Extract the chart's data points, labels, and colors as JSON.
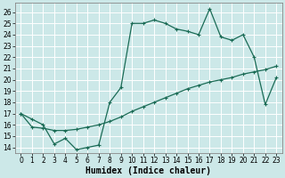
{
  "xlabel": "Humidex (Indice chaleur)",
  "xlim": [
    -0.5,
    23.5
  ],
  "ylim": [
    13.5,
    26.8
  ],
  "xticks": [
    0,
    1,
    2,
    3,
    4,
    5,
    6,
    7,
    8,
    9,
    10,
    11,
    12,
    13,
    14,
    15,
    16,
    17,
    18,
    19,
    20,
    21,
    22,
    23
  ],
  "yticks": [
    14,
    15,
    16,
    17,
    18,
    19,
    20,
    21,
    22,
    23,
    24,
    25,
    26
  ],
  "line_color": "#1a6b55",
  "bg_color": "#cce8e8",
  "grid_color": "#b0d0d0",
  "line1_y": [
    17.0,
    16.5,
    16.0,
    14.3,
    14.8,
    13.8,
    14.0,
    14.2,
    18.0,
    19.3,
    25.0,
    25.0,
    25.3,
    25.0,
    24.5,
    24.3,
    24.0,
    26.3,
    23.8,
    23.5,
    24.0,
    22.0,
    17.8,
    20.2
  ],
  "line2_y": [
    17.0,
    15.8,
    15.7,
    15.5,
    15.5,
    15.6,
    15.8,
    16.0,
    16.3,
    16.7,
    17.2,
    17.6,
    18.0,
    18.4,
    18.8,
    19.2,
    19.5,
    19.8,
    20.0,
    20.2,
    20.5,
    20.7,
    20.9,
    21.2
  ],
  "tick_fontsize": 5.5,
  "xlabel_fontsize": 7.0
}
